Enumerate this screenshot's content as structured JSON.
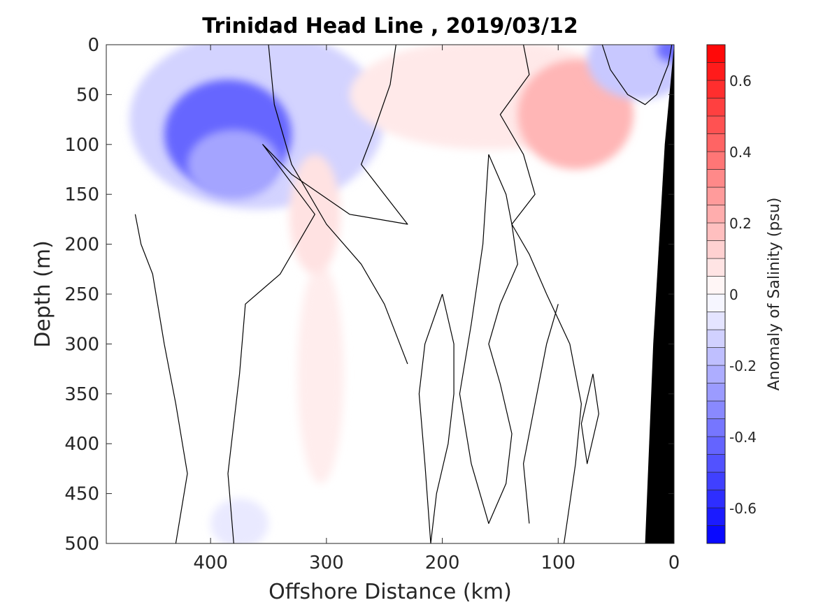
{
  "chart_data": {
    "type": "heatmap",
    "title": "Trinidad Head Line , 2019/03/12",
    "xlabel": "Offshore Distance (km)",
    "ylabel": "Depth (m)",
    "colorbar_label": "Anomaly of Salinity (psu)",
    "xlim": [
      490,
      0
    ],
    "ylim": [
      500,
      0
    ],
    "x_reversed": true,
    "y_reversed": true,
    "grid": false,
    "x_ticks": [
      400,
      300,
      200,
      100,
      0
    ],
    "x_tick_labels": [
      "400",
      "300",
      "200",
      "100",
      "0"
    ],
    "y_ticks": [
      0,
      50,
      100,
      150,
      200,
      250,
      300,
      350,
      400,
      450,
      500
    ],
    "y_tick_labels": [
      "0",
      "50",
      "100",
      "150",
      "200",
      "250",
      "300",
      "350",
      "400",
      "450",
      "500"
    ],
    "colorbar": {
      "range": [
        -0.7,
        0.7
      ],
      "step": 0.05,
      "ticks": [
        -0.6,
        -0.4,
        -0.2,
        0,
        0.2,
        0.4,
        0.6
      ],
      "tick_labels": [
        "-0.6",
        "-0.4",
        "-0.2",
        "0",
        "0.2",
        "0.4",
        "0.6"
      ],
      "min_color": "#0000ff",
      "zero_color": "#ffffff",
      "max_color": "#ff0000"
    },
    "zero_contour_color": "#000000",
    "bathymetry_color": "#000000",
    "bathymetry_polygon": [
      [
        25,
        500
      ],
      [
        0,
        500
      ],
      [
        0,
        0
      ],
      [
        8,
        100
      ],
      [
        18,
        300
      ]
    ],
    "anomaly_blobs": [
      {
        "name": "offshore low salinity core",
        "x": 385,
        "depth": 90,
        "rx": 55,
        "ry": 55,
        "value": -0.42
      },
      {
        "name": "offshore low salinity lower core",
        "x": 380,
        "depth": 120,
        "rx": 40,
        "ry": 35,
        "value": -0.25
      },
      {
        "name": "offshore low salinity envelope",
        "x": 360,
        "depth": 75,
        "rx": 110,
        "ry": 90,
        "value": -0.12
      },
      {
        "name": "nearshore surface low salinity",
        "x": 30,
        "depth": 15,
        "rx": 45,
        "ry": 40,
        "value": -0.15
      },
      {
        "name": "shore edge low salinity",
        "x": 3,
        "depth": 5,
        "rx": 12,
        "ry": 12,
        "value": -0.4
      },
      {
        "name": "mid shelf high salinity",
        "x": 85,
        "depth": 70,
        "rx": 50,
        "ry": 55,
        "value": 0.2
      },
      {
        "name": "upper layer high salinity",
        "x": 160,
        "depth": 50,
        "rx": 120,
        "ry": 55,
        "value": 0.06
      },
      {
        "name": "subsurface high salinity column",
        "x": 310,
        "depth": 170,
        "rx": 22,
        "ry": 60,
        "value": 0.08
      },
      {
        "name": "deep high salinity tongue",
        "x": 305,
        "depth": 330,
        "rx": 20,
        "ry": 110,
        "value": 0.05
      },
      {
        "name": "deep offshore low salinity",
        "x": 375,
        "depth": 480,
        "rx": 25,
        "ry": 25,
        "value": -0.06
      }
    ],
    "zero_contours": [
      [
        [
          240,
          0
        ],
        [
          245,
          40
        ],
        [
          260,
          90
        ],
        [
          270,
          120
        ],
        [
          250,
          150
        ],
        [
          230,
          180
        ],
        [
          280,
          170
        ],
        [
          330,
          130
        ],
        [
          355,
          100
        ],
        [
          310,
          170
        ],
        [
          340,
          230
        ],
        [
          370,
          260
        ],
        [
          375,
          330
        ],
        [
          385,
          430
        ],
        [
          380,
          500
        ]
      ],
      [
        [
          130,
          0
        ],
        [
          125,
          30
        ],
        [
          150,
          70
        ],
        [
          130,
          110
        ],
        [
          120,
          150
        ],
        [
          140,
          180
        ],
        [
          125,
          210
        ],
        [
          110,
          250
        ],
        [
          90,
          300
        ],
        [
          80,
          360
        ],
        [
          85,
          420
        ],
        [
          95,
          500
        ]
      ],
      [
        [
          160,
          110
        ],
        [
          145,
          150
        ],
        [
          140,
          180
        ],
        [
          135,
          220
        ],
        [
          150,
          260
        ],
        [
          160,
          300
        ],
        [
          150,
          340
        ],
        [
          140,
          390
        ],
        [
          145,
          440
        ],
        [
          160,
          480
        ],
        [
          175,
          420
        ],
        [
          185,
          350
        ],
        [
          175,
          280
        ],
        [
          165,
          200
        ],
        [
          160,
          110
        ]
      ],
      [
        [
          200,
          250
        ],
        [
          190,
          300
        ],
        [
          190,
          350
        ],
        [
          195,
          400
        ],
        [
          205,
          450
        ],
        [
          210,
          500
        ],
        [
          215,
          420
        ],
        [
          220,
          350
        ],
        [
          215,
          300
        ],
        [
          200,
          250
        ]
      ],
      [
        [
          62,
          0
        ],
        [
          55,
          25
        ],
        [
          40,
          50
        ],
        [
          25,
          60
        ],
        [
          15,
          50
        ],
        [
          5,
          20
        ],
        [
          2,
          0
        ]
      ],
      [
        [
          70,
          330
        ],
        [
          65,
          370
        ],
        [
          75,
          420
        ],
        [
          80,
          380
        ],
        [
          70,
          330
        ]
      ],
      [
        [
          465,
          170
        ],
        [
          460,
          200
        ],
        [
          450,
          230
        ],
        [
          440,
          300
        ],
        [
          430,
          360
        ],
        [
          420,
          430
        ],
        [
          430,
          500
        ]
      ],
      [
        [
          350,
          0
        ],
        [
          345,
          60
        ],
        [
          330,
          120
        ],
        [
          300,
          180
        ],
        [
          270,
          220
        ],
        [
          250,
          260
        ],
        [
          230,
          320
        ]
      ],
      [
        [
          100,
          260
        ],
        [
          110,
          300
        ],
        [
          120,
          360
        ],
        [
          130,
          420
        ],
        [
          125,
          480
        ]
      ]
    ]
  }
}
